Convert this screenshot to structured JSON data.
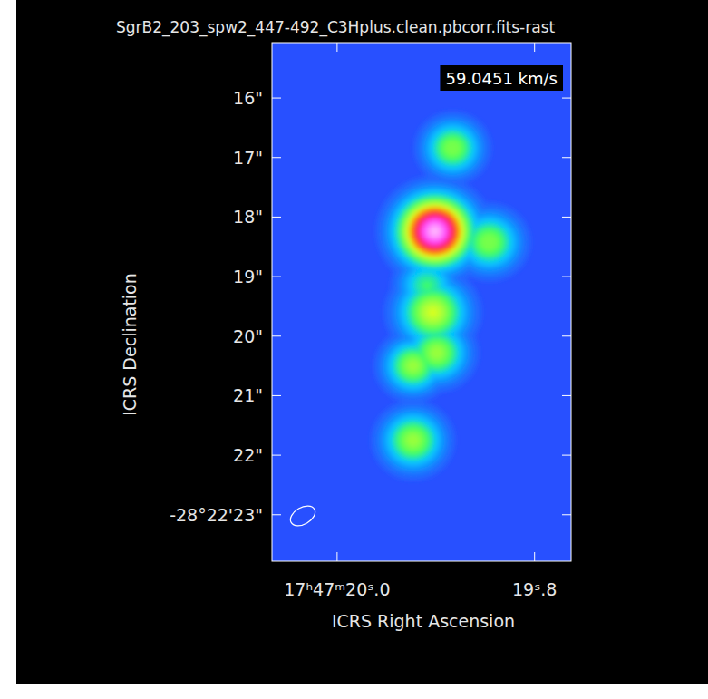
{
  "chart_data": {
    "type": "image",
    "title": "SgrB2_203_spw2_447-492_C3Hplus.clean.pbcorr.fits-rast",
    "annotation": "59.0451 km/s",
    "x_label": "ICRS Right Ascension",
    "y_label": "ICRS Declination",
    "xlim": [
      20.066,
      19.763
    ],
    "ylim": [
      23.78,
      15.07
    ],
    "xticks": [
      {
        "value": 20.0,
        "label": "17ʰ47ᵐ20ˢ.0"
      },
      {
        "value": 19.8,
        "label": "19ˢ.8"
      }
    ],
    "yticks": [
      {
        "value": 16,
        "label": "16\""
      },
      {
        "value": 17,
        "label": "17\""
      },
      {
        "value": 18,
        "label": "18\""
      },
      {
        "value": 19,
        "label": "19\""
      },
      {
        "value": 20,
        "label": "20\""
      },
      {
        "value": 21,
        "label": "21\""
      },
      {
        "value": 22,
        "label": "22\""
      },
      {
        "value": 23,
        "label": "-28°22'23\""
      }
    ],
    "clim": [
      0,
      1
    ],
    "background_level": 0.15,
    "beam": {
      "major": 0.45,
      "minor": 0.28,
      "pa": -60
    },
    "components": [
      {
        "ra": 19.901,
        "dec": 18.24,
        "peak": 1.0,
        "size": 0.9
      },
      {
        "ra": 19.846,
        "dec": 18.42,
        "peak": 0.48,
        "size": 0.75
      },
      {
        "ra": 19.883,
        "dec": 16.84,
        "peak": 0.48,
        "size": 0.7
      },
      {
        "ra": 19.909,
        "dec": 19.15,
        "peak": 0.4,
        "size": 0.7
      },
      {
        "ra": 19.903,
        "dec": 19.6,
        "peak": 0.55,
        "size": 0.85
      },
      {
        "ra": 19.899,
        "dec": 20.28,
        "peak": 0.5,
        "size": 0.75
      },
      {
        "ra": 19.923,
        "dec": 20.5,
        "peak": 0.5,
        "size": 0.7
      },
      {
        "ra": 19.923,
        "dec": 21.75,
        "peak": 0.5,
        "size": 0.75
      }
    ]
  }
}
